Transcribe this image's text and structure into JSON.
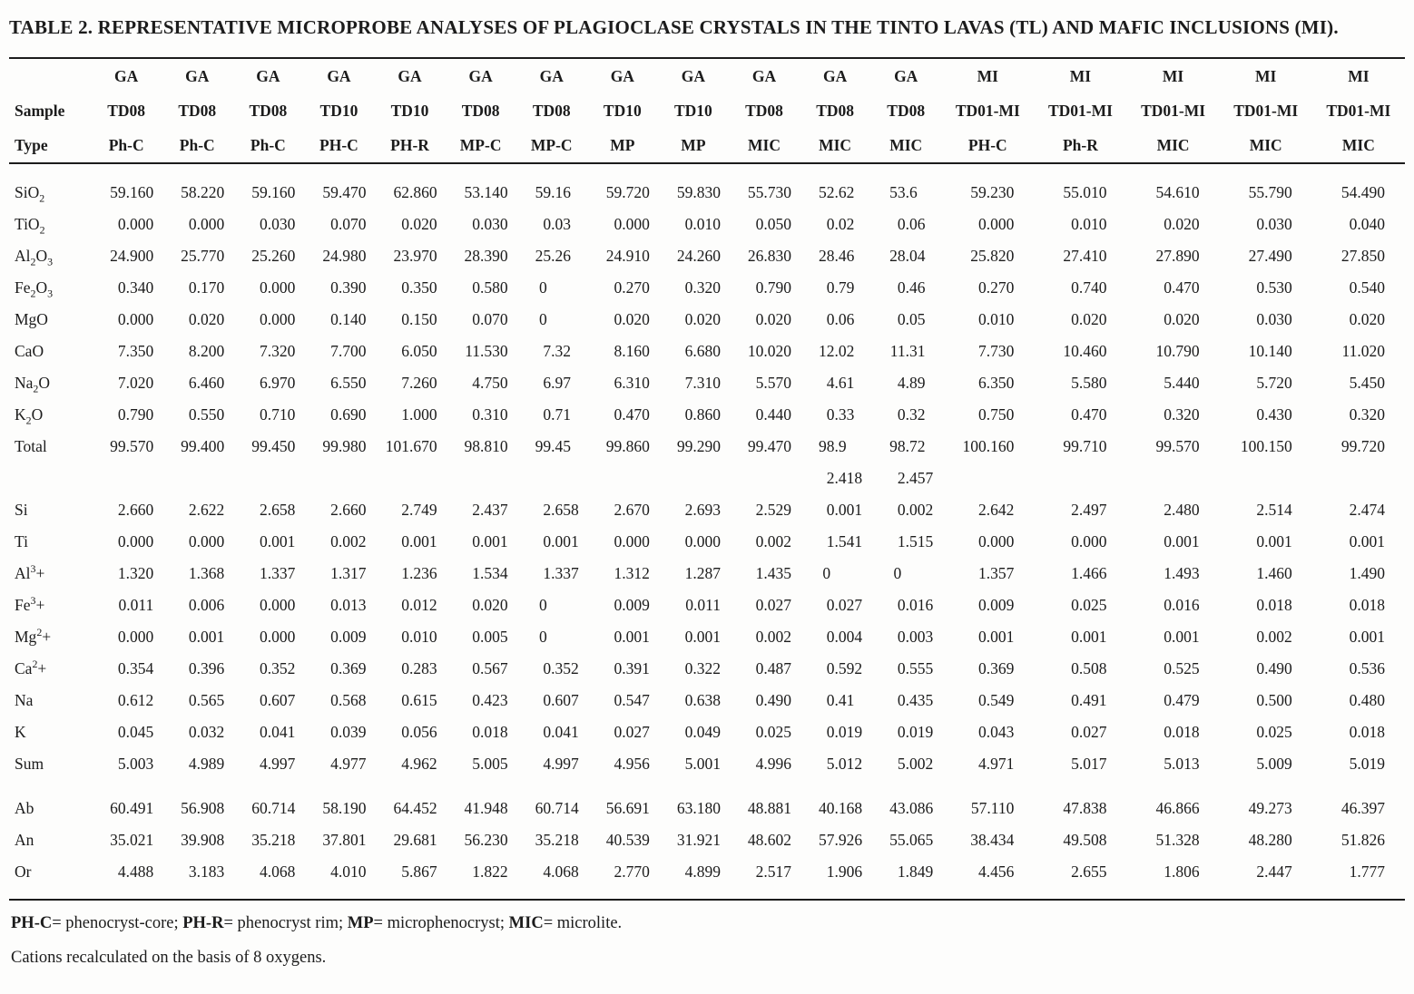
{
  "title": "TABLE 2. REPRESENTATIVE MICROPROBE ANALYSES OF PLAGIOCLASE CRYSTALS IN THE TINTO LAVAS (TL) AND MAFIC INCLUSIONS (MI).",
  "table": {
    "header_rows": [
      {
        "label": "",
        "cells": [
          "GA",
          "GA",
          "GA",
          "GA",
          "GA",
          "GA",
          "GA",
          "GA",
          "GA",
          "GA",
          "GA",
          "GA",
          "MI",
          "MI",
          "MI",
          "MI",
          "MI"
        ]
      },
      {
        "label": "Sample",
        "cells": [
          "TD08",
          "TD08",
          "TD08",
          "TD10",
          "TD10",
          "TD08",
          "TD08",
          "TD10",
          "TD10",
          "TD08",
          "TD08",
          "TD08",
          "TD01-MI",
          "TD01-MI",
          "TD01-MI",
          "TD01-MI",
          "TD01-MI"
        ]
      },
      {
        "label": "Type",
        "cells": [
          "Ph-C",
          "Ph-C",
          "Ph-C",
          "PH-C",
          "PH-R",
          "MP-C",
          "MP-C",
          "MP",
          "MP",
          "MIC",
          "MIC",
          "MIC",
          "PH-C",
          "Ph-R",
          "MIC",
          "MIC",
          "MIC"
        ]
      }
    ],
    "sections": [
      {
        "name": "oxides-wt-percent",
        "rows": [
          {
            "label": "SiO_2",
            "values": [
              "59.160",
              "58.220",
              "59.160",
              "59.470",
              "62.860",
              "53.140",
              "59.16",
              "59.720",
              "59.830",
              "55.730",
              "52.62",
              "53.6",
              "59.230",
              "55.010",
              "54.610",
              "55.790",
              "54.490"
            ]
          },
          {
            "label": "TiO_2",
            "values": [
              "0.000",
              "0.000",
              "0.030",
              "0.070",
              "0.020",
              "0.030",
              "0.03",
              "0.000",
              "0.010",
              "0.050",
              "0.02",
              "0.06",
              "0.000",
              "0.010",
              "0.020",
              "0.030",
              "0.040"
            ]
          },
          {
            "label": "Al_2O_3",
            "values": [
              "24.900",
              "25.770",
              "25.260",
              "24.980",
              "23.970",
              "28.390",
              "25.26",
              "24.910",
              "24.260",
              "26.830",
              "28.46",
              "28.04",
              "25.820",
              "27.410",
              "27.890",
              "27.490",
              "27.850"
            ]
          },
          {
            "label": "Fe_2O_3",
            "values": [
              "0.340",
              "0.170",
              "0.000",
              "0.390",
              "0.350",
              "0.580",
              "0",
              "0.270",
              "0.320",
              "0.790",
              "0.79",
              "0.46",
              "0.270",
              "0.740",
              "0.470",
              "0.530",
              "0.540"
            ]
          },
          {
            "label": "MgO",
            "values": [
              "0.000",
              "0.020",
              "0.000",
              "0.140",
              "0.150",
              "0.070",
              "0",
              "0.020",
              "0.020",
              "0.020",
              "0.06",
              "0.05",
              "0.010",
              "0.020",
              "0.020",
              "0.030",
              "0.020"
            ]
          },
          {
            "label": "CaO",
            "values": [
              "7.350",
              "8.200",
              "7.320",
              "7.700",
              "6.050",
              "11.530",
              "7.32",
              "8.160",
              "6.680",
              "10.020",
              "12.02",
              "11.31",
              "7.730",
              "10.460",
              "10.790",
              "10.140",
              "11.020"
            ]
          },
          {
            "label": "Na_2O",
            "values": [
              "7.020",
              "6.460",
              "6.970",
              "6.550",
              "7.260",
              "4.750",
              "6.97",
              "6.310",
              "7.310",
              "5.570",
              "4.61",
              "4.89",
              "6.350",
              "5.580",
              "5.440",
              "5.720",
              "5.450"
            ]
          },
          {
            "label": "K_2O",
            "values": [
              "0.790",
              "0.550",
              "0.710",
              "0.690",
              "1.000",
              "0.310",
              "0.71",
              "0.470",
              "0.860",
              "0.440",
              "0.33",
              "0.32",
              "0.750",
              "0.470",
              "0.320",
              "0.430",
              "0.320"
            ]
          },
          {
            "label": "Total",
            "values": [
              "99.570",
              "99.400",
              "99.450",
              "99.980",
              "101.670",
              "98.810",
              "99.45",
              "99.860",
              "99.290",
              "99.470",
              "98.9",
              "98.72",
              "100.160",
              "99.710",
              "99.570",
              "100.150",
              "99.720"
            ]
          },
          {
            "label": "",
            "values": [
              "",
              "",
              "",
              "",
              "",
              "",
              "",
              "",
              "",
              "",
              "2.418",
              "2.457",
              "",
              "",
              "",
              "",
              ""
            ]
          }
        ]
      },
      {
        "name": "cations-per-8-oxygens",
        "rows": [
          {
            "label": "Si",
            "values": [
              "2.660",
              "2.622",
              "2.658",
              "2.660",
              "2.749",
              "2.437",
              "2.658",
              "2.670",
              "2.693",
              "2.529",
              "0.001",
              "0.002",
              "2.642",
              "2.497",
              "2.480",
              "2.514",
              "2.474"
            ]
          },
          {
            "label": "Ti",
            "values": [
              "0.000",
              "0.000",
              "0.001",
              "0.002",
              "0.001",
              "0.001",
              "0.001",
              "0.000",
              "0.000",
              "0.002",
              "1.541",
              "1.515",
              "0.000",
              "0.000",
              "0.001",
              "0.001",
              "0.001"
            ]
          },
          {
            "label": "Al^3+",
            "values": [
              "1.320",
              "1.368",
              "1.337",
              "1.317",
              "1.236",
              "1.534",
              "1.337",
              "1.312",
              "1.287",
              "1.435",
              "0",
              "0",
              "1.357",
              "1.466",
              "1.493",
              "1.460",
              "1.490"
            ]
          },
          {
            "label": "Fe^3+",
            "values": [
              "0.011",
              "0.006",
              "0.000",
              "0.013",
              "0.012",
              "0.020",
              "0",
              "0.009",
              "0.011",
              "0.027",
              "0.027",
              "0.016",
              "0.009",
              "0.025",
              "0.016",
              "0.018",
              "0.018"
            ]
          },
          {
            "label": "Mg^2+",
            "values": [
              "0.000",
              "0.001",
              "0.000",
              "0.009",
              "0.010",
              "0.005",
              "0",
              "0.001",
              "0.001",
              "0.002",
              "0.004",
              "0.003",
              "0.001",
              "0.001",
              "0.001",
              "0.002",
              "0.001"
            ]
          },
          {
            "label": "Ca^2+",
            "values": [
              "0.354",
              "0.396",
              "0.352",
              "0.369",
              "0.283",
              "0.567",
              "0.352",
              "0.391",
              "0.322",
              "0.487",
              "0.592",
              "0.555",
              "0.369",
              "0.508",
              "0.525",
              "0.490",
              "0.536"
            ]
          },
          {
            "label": "Na",
            "values": [
              "0.612",
              "0.565",
              "0.607",
              "0.568",
              "0.615",
              "0.423",
              "0.607",
              "0.547",
              "0.638",
              "0.490",
              "0.41",
              "0.435",
              "0.549",
              "0.491",
              "0.479",
              "0.500",
              "0.480"
            ]
          },
          {
            "label": "K",
            "values": [
              "0.045",
              "0.032",
              "0.041",
              "0.039",
              "0.056",
              "0.018",
              "0.041",
              "0.027",
              "0.049",
              "0.025",
              "0.019",
              "0.019",
              "0.043",
              "0.027",
              "0.018",
              "0.025",
              "0.018"
            ]
          },
          {
            "label": "Sum",
            "values": [
              "5.003",
              "4.989",
              "4.997",
              "4.977",
              "4.962",
              "5.005",
              "4.997",
              "4.956",
              "5.001",
              "4.996",
              "5.012",
              "5.002",
              "4.971",
              "5.017",
              "5.013",
              "5.009",
              "5.019"
            ]
          }
        ]
      },
      {
        "name": "feldspar-endmembers",
        "rows": [
          {
            "label": "Ab",
            "values": [
              "60.491",
              "56.908",
              "60.714",
              "58.190",
              "64.452",
              "41.948",
              "60.714",
              "56.691",
              "63.180",
              "48.881",
              "40.168",
              "43.086",
              "57.110",
              "47.838",
              "46.866",
              "49.273",
              "46.397"
            ]
          },
          {
            "label": "An",
            "values": [
              "35.021",
              "39.908",
              "35.218",
              "37.801",
              "29.681",
              "56.230",
              "35.218",
              "40.539",
              "31.921",
              "48.602",
              "57.926",
              "55.065",
              "38.434",
              "49.508",
              "51.328",
              "48.280",
              "51.826"
            ]
          },
          {
            "label": "Or",
            "values": [
              "4.488",
              "3.183",
              "4.068",
              "4.010",
              "5.867",
              "1.822",
              "4.068",
              "2.770",
              "4.899",
              "2.517",
              "1.906",
              "1.849",
              "4.456",
              "2.655",
              "1.806",
              "2.447",
              "1.777"
            ]
          }
        ]
      }
    ]
  },
  "footnotes": {
    "abbreviations": "**PH-C**= phenocryst-core; **PH-R**= phenocryst rim; **MP**= microphenocryst; **MIC**= microlite.",
    "recalculation": "Cations recalculated on the basis of 8 oxygens."
  }
}
